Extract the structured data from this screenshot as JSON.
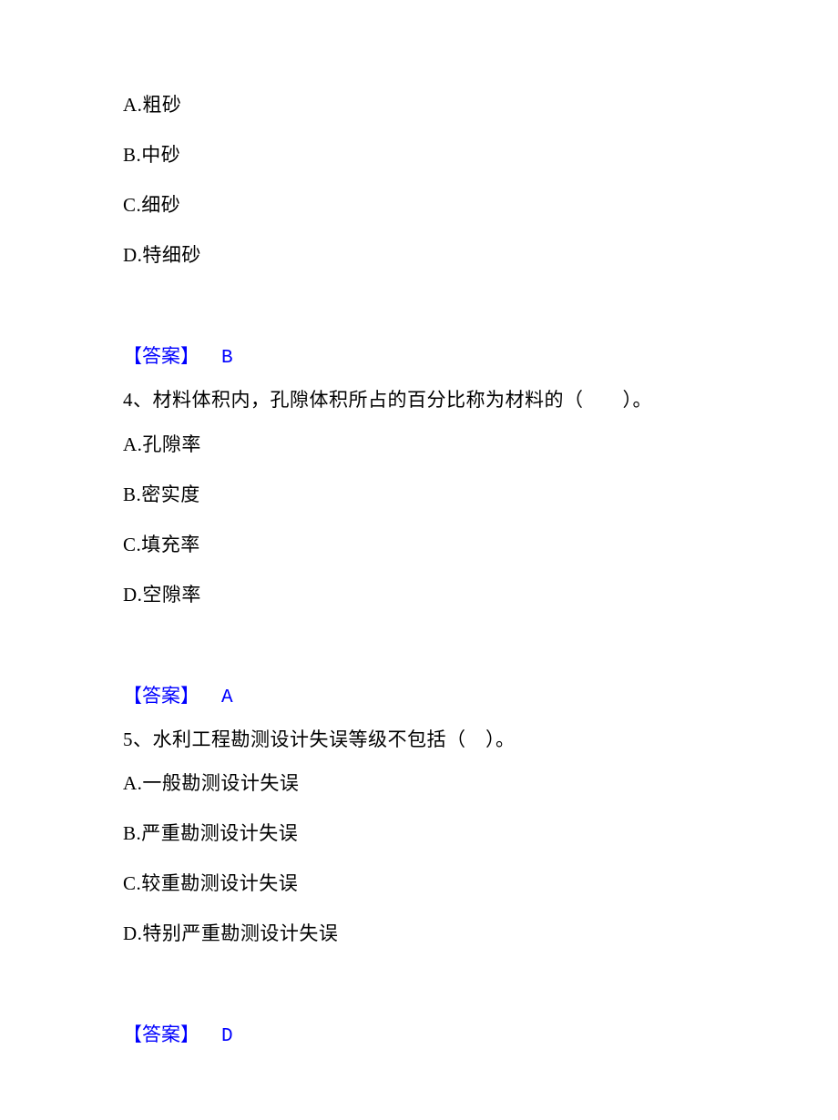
{
  "q3": {
    "options": {
      "a": "A.粗砂",
      "b": "B.中砂",
      "c": "C.细砂",
      "d": "D.特细砂"
    },
    "answer_label": "【答案】",
    "answer": "B"
  },
  "q4": {
    "stem": "4、材料体积内，孔隙体积所占的百分比称为材料的（　　）。",
    "options": {
      "a": "A.孔隙率",
      "b": "B.密实度",
      "c": "C.填充率",
      "d": "D.空隙率"
    },
    "answer_label": "【答案】",
    "answer": "A"
  },
  "q5": {
    "stem": "5、水利工程勘测设计失误等级不包括（　）。",
    "options": {
      "a": "A.一般勘测设计失误",
      "b": "B.严重勘测设计失误",
      "c": "C.较重勘测设计失误",
      "d": "D.特别严重勘测设计失误"
    },
    "answer_label": "【答案】",
    "answer": "D"
  },
  "colors": {
    "text": "#000000",
    "answer": "#0000ff",
    "background": "#ffffff"
  },
  "fontsize": 21
}
